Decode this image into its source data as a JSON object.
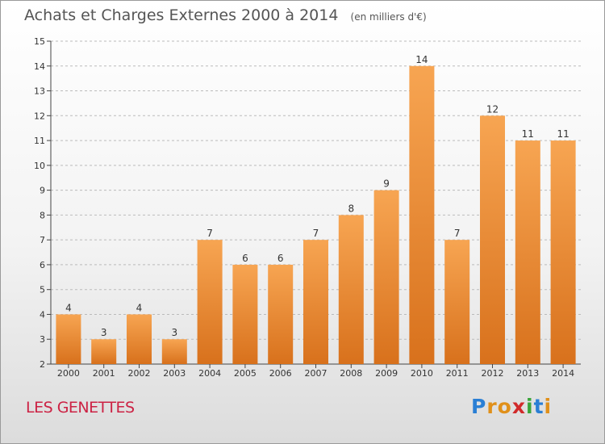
{
  "header": {
    "title": "Achats et Charges Externes 2000 à 2014",
    "unit": "(en milliers d'€)"
  },
  "footer": {
    "place": "LES GENETTES",
    "logo_text": "Proxiti"
  },
  "colors": {
    "bar_top": "#f7a552",
    "bar_bottom": "#d8711c",
    "grid": "#bbbbbb",
    "axis": "#444444",
    "title": "#555555",
    "place": "#cc2244"
  },
  "chart_data": {
    "type": "bar",
    "title": "Achats et Charges Externes 2000 à 2014",
    "subtitle": "(en milliers d'€)",
    "xlabel": "",
    "ylabel": "",
    "categories": [
      "2000",
      "2001",
      "2002",
      "2003",
      "2004",
      "2005",
      "2006",
      "2007",
      "2008",
      "2009",
      "2010",
      "2011",
      "2012",
      "2013",
      "2014"
    ],
    "values": [
      4,
      3,
      4,
      3,
      7,
      6,
      6,
      7,
      8,
      9,
      14,
      7,
      12,
      11,
      11
    ],
    "ylim": [
      2,
      15
    ],
    "yticks": [
      2,
      3,
      4,
      5,
      6,
      7,
      8,
      9,
      10,
      11,
      12,
      13,
      14,
      15
    ],
    "grid": "horizontal dashed",
    "legend": "none"
  }
}
